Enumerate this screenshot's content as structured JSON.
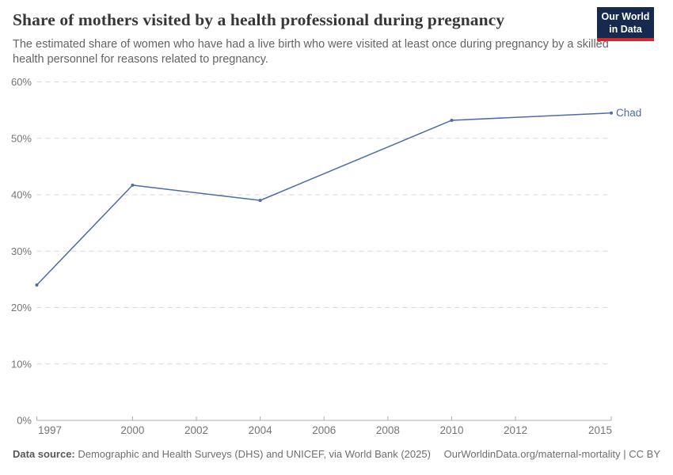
{
  "header": {
    "title": "Share of mothers visited by a health professional during pregnancy",
    "subtitle": "The estimated share of women who have had a live birth who were visited at least once during pregnancy by a skilled health personnel for reasons related to pregnancy.",
    "logo": {
      "line1": "Our World",
      "line2": "in Data",
      "bg_color": "#152a4e",
      "stripe_color": "#d8262c"
    }
  },
  "chart_data": {
    "type": "line",
    "title": "Share of mothers visited by a health professional during pregnancy",
    "xlabel": "",
    "ylabel": "",
    "xlim": [
      1997,
      2015
    ],
    "ylim": [
      0,
      60
    ],
    "x_ticks": [
      1997,
      2000,
      2002,
      2004,
      2006,
      2008,
      2010,
      2012,
      2015
    ],
    "y_ticks": [
      0,
      10,
      20,
      30,
      40,
      50,
      60
    ],
    "y_tick_suffix": "%",
    "grid": "dashed-horizontal-gridlines",
    "legend_position": "end-of-line-label",
    "series": [
      {
        "name": "Chad",
        "color": "#4c6ca8",
        "x": [
          1997,
          2000,
          2004,
          2010,
          2015
        ],
        "values": [
          24,
          41.7,
          39,
          53.2,
          54.5
        ]
      }
    ],
    "colors": {
      "gridline": "#d9d9d9",
      "axis_line": "#adadad",
      "tick_label": "#757575",
      "series_line": "#4c6ca8"
    }
  },
  "footer": {
    "source_label": "Data source:",
    "source_text": " Demographic and Health Surveys (DHS) and UNICEF, via World Bank (2025)",
    "attribution": "OurWorldinData.org/maternal-mortality | CC BY"
  }
}
